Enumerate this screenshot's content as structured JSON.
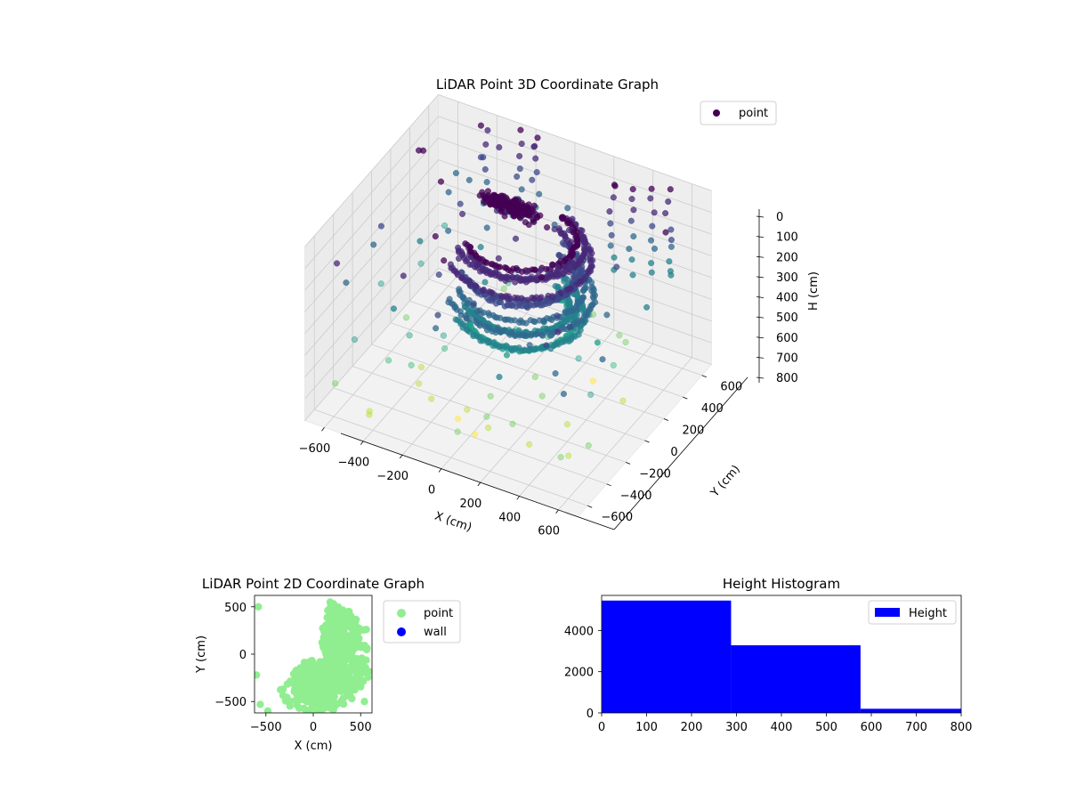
{
  "colors": {
    "viridis": [
      "#440154",
      "#482878",
      "#3e4989",
      "#31688e",
      "#26828e",
      "#1f9e89",
      "#35b779",
      "#6ece58",
      "#b5de2b",
      "#fde725"
    ],
    "point_2d": "#90ee90",
    "wall": "#0000ff",
    "histogram": "#0000ff",
    "pane": "#f2f2f2",
    "grid": "#cccccc"
  },
  "chart_data": [
    {
      "type": "scatter",
      "projection": "3d",
      "title": "LiDAR Point 3D Coordinate Graph",
      "xlabel": "X (cm)",
      "ylabel": "Y (cm)",
      "zlabel": "H (cm)",
      "xlim": [
        -700,
        700
      ],
      "ylim": [
        -700,
        700
      ],
      "zlim": [
        800,
        0
      ],
      "xticks": [
        -600,
        -400,
        -200,
        0,
        200,
        400,
        600
      ],
      "yticks": [
        -600,
        -400,
        -200,
        0,
        200,
        400,
        600
      ],
      "zticks": [
        0,
        100,
        200,
        300,
        400,
        500,
        600,
        700,
        800
      ],
      "legend": [
        "point"
      ],
      "legend_position": "top-right",
      "color_by": "height (viridis, low H = dark purple)",
      "grid": true
    },
    {
      "type": "scatter",
      "title": "LiDAR Point 2D Coordinate Graph",
      "xlabel": "X (cm)",
      "ylabel": "Y (cm)",
      "xlim": [
        -620,
        620
      ],
      "ylim": [
        -620,
        620
      ],
      "xticks": [
        -500,
        0,
        500
      ],
      "yticks": [
        -500,
        0,
        500
      ],
      "series": [
        {
          "name": "point",
          "color": "#90ee90"
        },
        {
          "name": "wall",
          "color": "#0000ff"
        }
      ],
      "legend_position": "outside-right",
      "grid": false
    },
    {
      "type": "bar",
      "title": "Height Histogram",
      "xlim": [
        0,
        800
      ],
      "ylim": [
        0,
        5700
      ],
      "xticks": [
        0,
        100,
        200,
        300,
        400,
        500,
        600,
        700,
        800
      ],
      "yticks": [
        0,
        2000,
        4000
      ],
      "bins": [
        [
          0,
          288
        ],
        [
          288,
          576
        ],
        [
          576,
          800
        ]
      ],
      "series": [
        {
          "name": "Height",
          "values": [
            5450,
            3280,
            200
          ]
        }
      ],
      "legend_position": "top-right",
      "grid": false
    }
  ]
}
